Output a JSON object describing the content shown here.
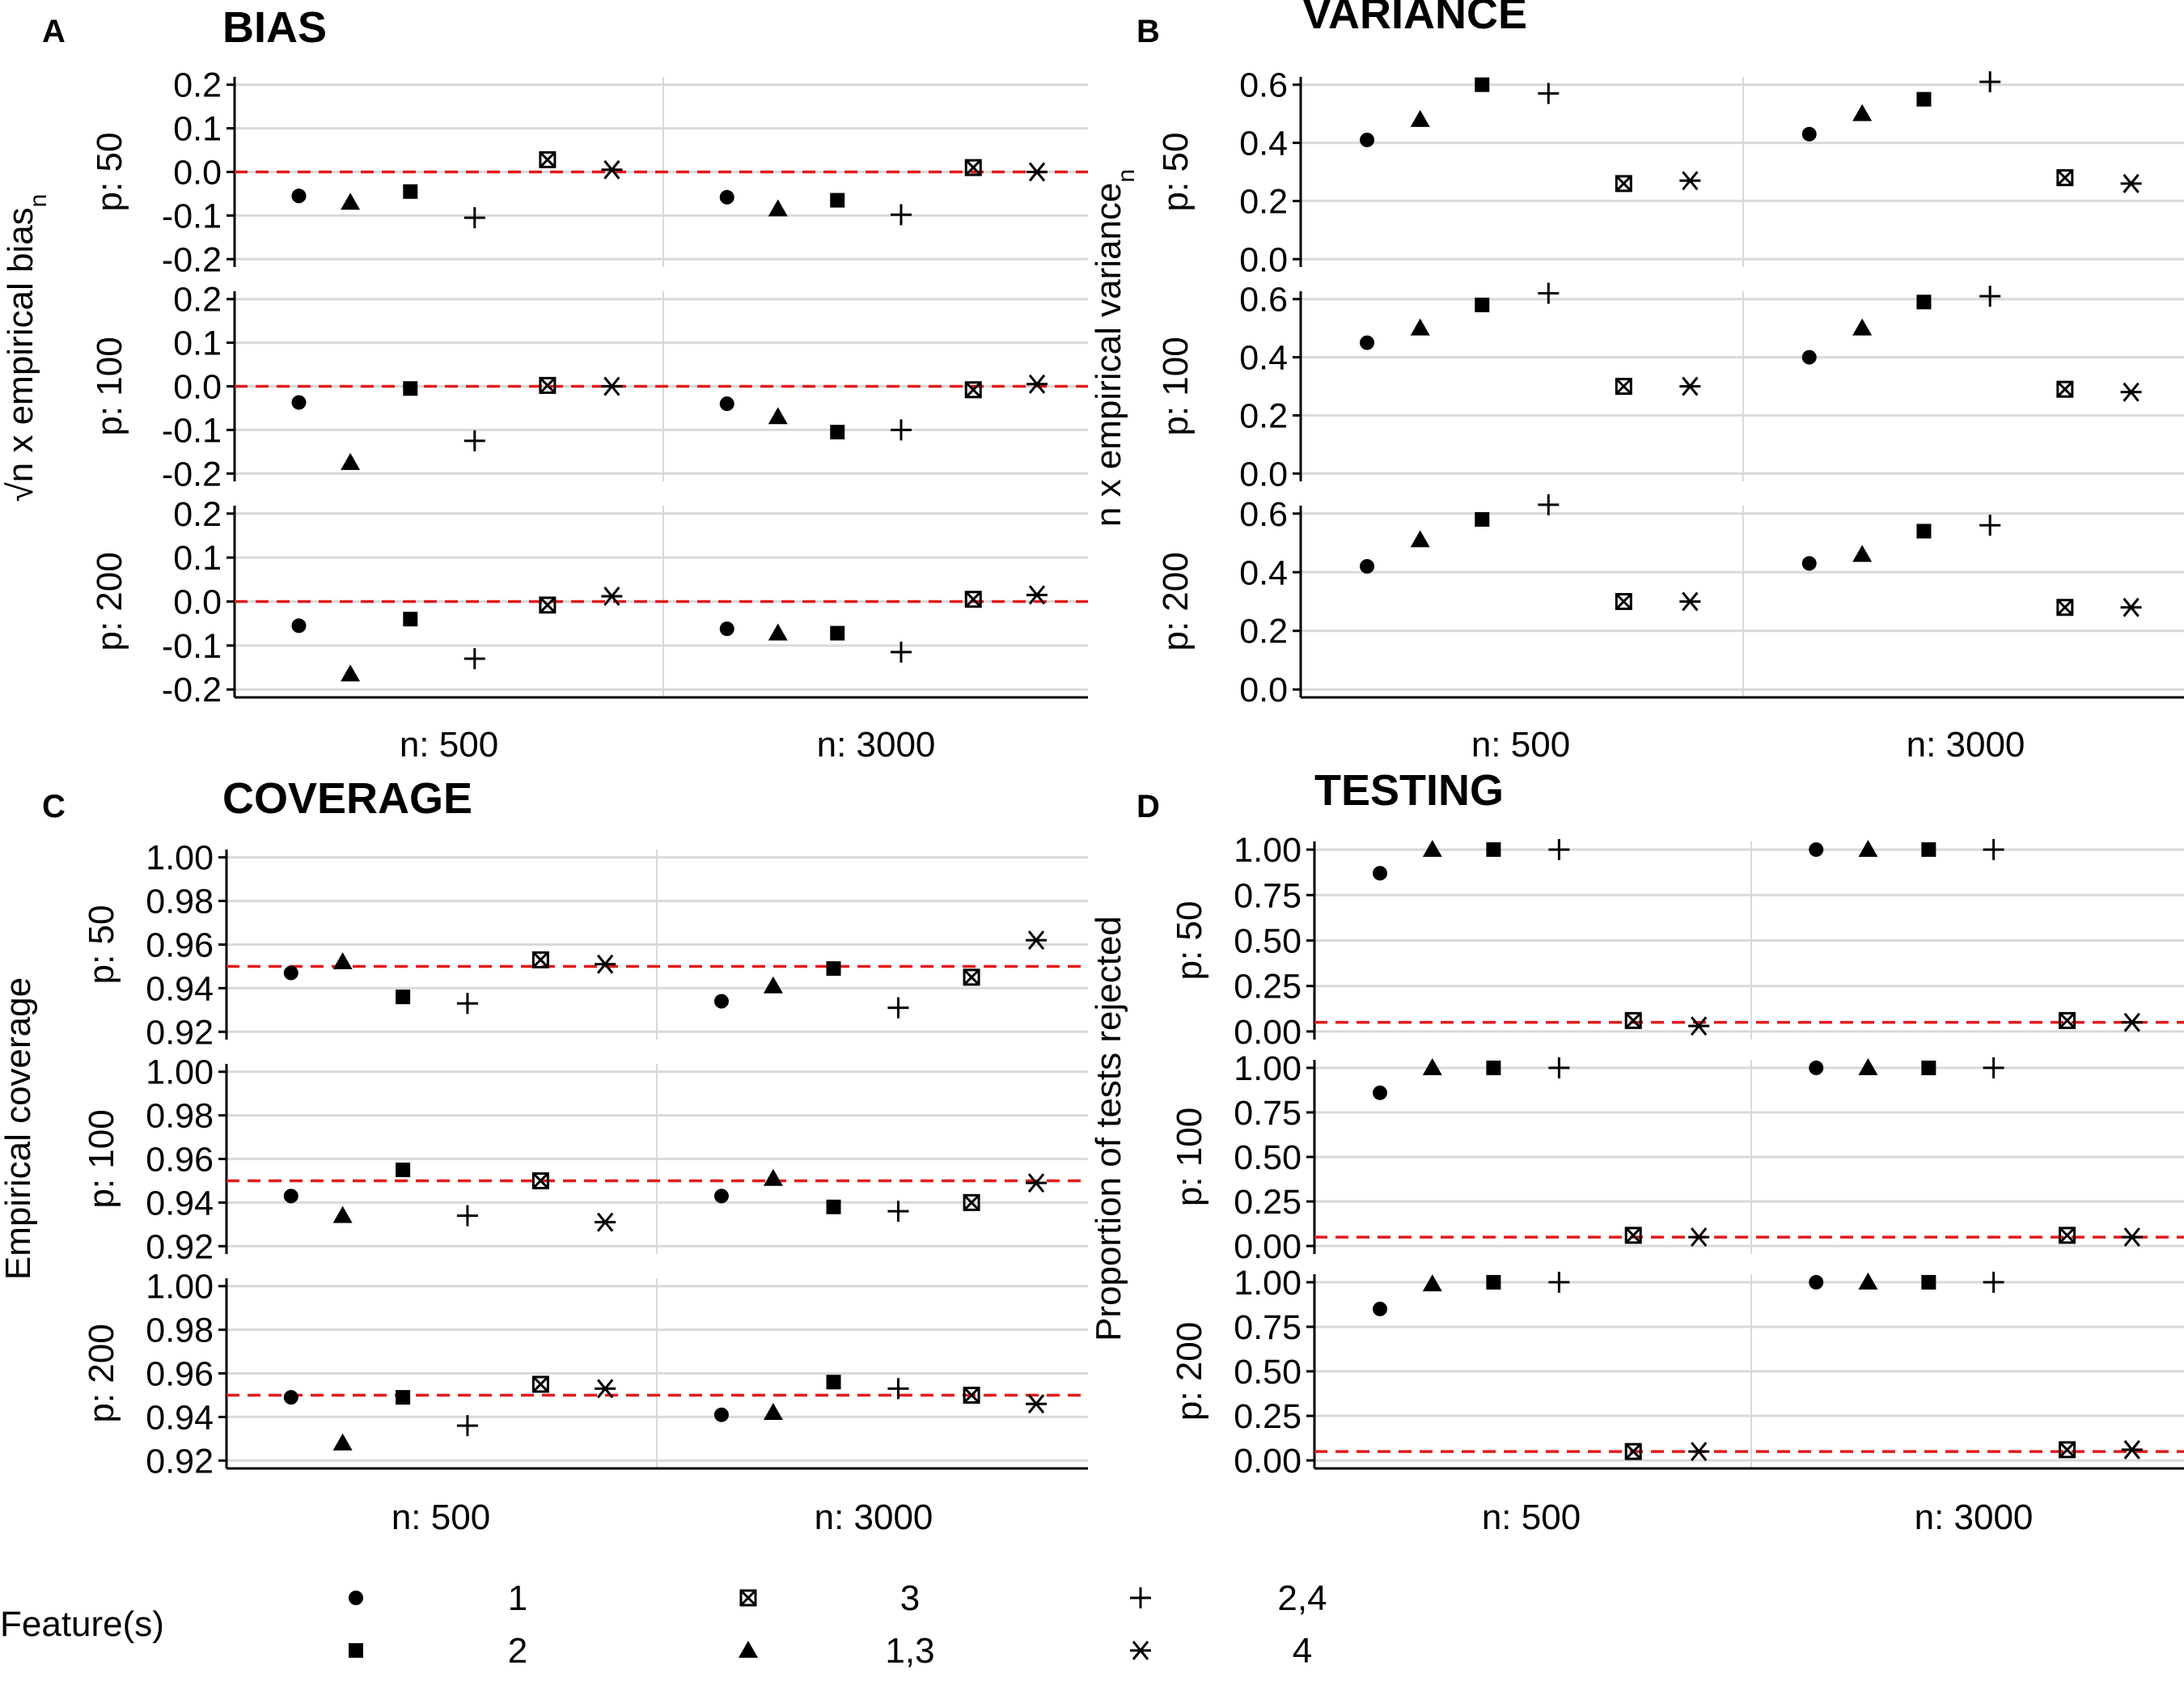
{
  "legend": {
    "title": "Feature(s)",
    "entries": [
      {
        "label": "1",
        "shape": "circle"
      },
      {
        "label": "1,3",
        "shape": "triangle"
      },
      {
        "label": "2",
        "shape": "square"
      },
      {
        "label": "2,4",
        "shape": "plus"
      },
      {
        "label": "3",
        "shape": "boxx"
      },
      {
        "label": "4",
        "shape": "asterisk"
      }
    ]
  },
  "colors": {
    "reference_line": "#e31a1c",
    "grid": "#d9d9d9",
    "points": "#000000"
  },
  "chart_data": [
    {
      "type": "scatter",
      "panel": "A",
      "title": "BIAS",
      "ylabel": "√n x empirical bias",
      "ylabel_subscript": "n",
      "ylim": [
        -0.2,
        0.2
      ],
      "yticks": [
        "-0.2",
        "-0.1",
        "0.0",
        "0.1",
        "0.2"
      ],
      "reference_line": 0.0,
      "row_facets": [
        "p: 50",
        "p: 100",
        "p: 200"
      ],
      "col_facets": [
        "n: 500",
        "n: 3000"
      ],
      "series": [
        {
          "name": "1",
          "shape": "circle",
          "values": [
            [
              -0.055,
              -0.058
            ],
            [
              -0.037,
              -0.04
            ],
            [
              -0.055,
              -0.062
            ]
          ]
        },
        {
          "name": "1,3",
          "shape": "triangle",
          "values": [
            [
              -0.07,
              -0.085
            ],
            [
              -0.175,
              -0.07
            ],
            [
              -0.165,
              -0.072
            ]
          ]
        },
        {
          "name": "2",
          "shape": "square",
          "values": [
            [
              -0.045,
              -0.065
            ],
            [
              -0.005,
              -0.105
            ],
            [
              -0.04,
              -0.072
            ]
          ]
        },
        {
          "name": "2,4",
          "shape": "plus",
          "values": [
            [
              -0.105,
              -0.098
            ],
            [
              -0.125,
              -0.1
            ],
            [
              -0.13,
              -0.115
            ]
          ]
        },
        {
          "name": "3",
          "shape": "boxx",
          "values": [
            [
              0.028,
              0.01
            ],
            [
              0.002,
              -0.008
            ],
            [
              -0.008,
              0.005
            ]
          ]
        },
        {
          "name": "4",
          "shape": "asterisk",
          "values": [
            [
              0.005,
              0.0
            ],
            [
              0.0,
              0.005
            ],
            [
              0.012,
              0.015
            ]
          ]
        }
      ]
    },
    {
      "type": "scatter",
      "panel": "B",
      "title": "VARIANCE",
      "ylabel": "n x empirical variance",
      "ylabel_subscript": "n",
      "ylim": [
        0.0,
        0.6
      ],
      "yticks": [
        "0.0",
        "0.2",
        "0.4",
        "0.6"
      ],
      "reference_line": null,
      "row_facets": [
        "p: 50",
        "p: 100",
        "p: 200"
      ],
      "col_facets": [
        "n: 500",
        "n: 3000"
      ],
      "series": [
        {
          "name": "1",
          "shape": "circle",
          "values": [
            [
              0.41,
              0.43
            ],
            [
              0.45,
              0.4
            ],
            [
              0.42,
              0.43
            ]
          ]
        },
        {
          "name": "1,3",
          "shape": "triangle",
          "values": [
            [
              0.48,
              0.5
            ],
            [
              0.5,
              0.5
            ],
            [
              0.51,
              0.46
            ]
          ]
        },
        {
          "name": "2",
          "shape": "square",
          "values": [
            [
              0.6,
              0.55
            ],
            [
              0.58,
              0.59
            ],
            [
              0.58,
              0.54
            ]
          ]
        },
        {
          "name": "2,4",
          "shape": "plus",
          "values": [
            [
              0.57,
              0.61
            ],
            [
              0.62,
              0.61
            ],
            [
              0.63,
              0.56
            ]
          ]
        },
        {
          "name": "3",
          "shape": "boxx",
          "values": [
            [
              0.26,
              0.28
            ],
            [
              0.3,
              0.29
            ],
            [
              0.3,
              0.28
            ]
          ]
        },
        {
          "name": "4",
          "shape": "asterisk",
          "values": [
            [
              0.27,
              0.26
            ],
            [
              0.3,
              0.28
            ],
            [
              0.3,
              0.28
            ]
          ]
        }
      ]
    },
    {
      "type": "scatter",
      "panel": "C",
      "title": "COVERAGE",
      "ylabel": "Empirical coverage",
      "ylim": [
        0.92,
        1.0
      ],
      "yticks": [
        "0.92",
        "0.94",
        "0.96",
        "0.98",
        "1.00"
      ],
      "reference_line": 0.95,
      "row_facets": [
        "p: 50",
        "p: 100",
        "p: 200"
      ],
      "col_facets": [
        "n: 500",
        "n: 3000"
      ],
      "series": [
        {
          "name": "1",
          "shape": "circle",
          "values": [
            [
              0.947,
              0.934
            ],
            [
              0.943,
              0.943
            ],
            [
              0.949,
              0.941
            ]
          ]
        },
        {
          "name": "1,3",
          "shape": "triangle",
          "values": [
            [
              0.952,
              0.941
            ],
            [
              0.934,
              0.951
            ],
            [
              0.928,
              0.942
            ]
          ]
        },
        {
          "name": "2",
          "shape": "square",
          "values": [
            [
              0.936,
              0.949
            ],
            [
              0.955,
              0.938
            ],
            [
              0.949,
              0.956
            ]
          ]
        },
        {
          "name": "2,4",
          "shape": "plus",
          "values": [
            [
              0.933,
              0.931
            ],
            [
              0.934,
              0.936
            ],
            [
              0.936,
              0.953
            ]
          ]
        },
        {
          "name": "3",
          "shape": "boxx",
          "values": [
            [
              0.953,
              0.945
            ],
            [
              0.95,
              0.94
            ],
            [
              0.955,
              0.95
            ]
          ]
        },
        {
          "name": "4",
          "shape": "asterisk",
          "values": [
            [
              0.951,
              0.962
            ],
            [
              0.931,
              0.949
            ],
            [
              0.953,
              0.946
            ]
          ]
        }
      ]
    },
    {
      "type": "scatter",
      "panel": "D",
      "title": "TESTING",
      "ylabel": "Proportion of tests rejected",
      "ylim": [
        0.0,
        1.0
      ],
      "yticks": [
        "0.00",
        "0.25",
        "0.50",
        "0.75",
        "1.00"
      ],
      "reference_line": 0.05,
      "row_facets": [
        "p: 50",
        "p: 100",
        "p: 200"
      ],
      "col_facets": [
        "n: 500",
        "n: 3000"
      ],
      "series": [
        {
          "name": "1",
          "shape": "circle",
          "values": [
            [
              0.87,
              1.0
            ],
            [
              0.86,
              1.0
            ],
            [
              0.85,
              1.0
            ]
          ]
        },
        {
          "name": "1,3",
          "shape": "triangle",
          "values": [
            [
              1.0,
              1.0
            ],
            [
              1.0,
              1.0
            ],
            [
              0.99,
              1.0
            ]
          ]
        },
        {
          "name": "2",
          "shape": "square",
          "values": [
            [
              1.0,
              1.0
            ],
            [
              1.0,
              1.0
            ],
            [
              1.0,
              1.0
            ]
          ]
        },
        {
          "name": "2,4",
          "shape": "plus",
          "values": [
            [
              1.0,
              1.0
            ],
            [
              1.0,
              1.0
            ],
            [
              1.0,
              1.0
            ]
          ]
        },
        {
          "name": "3",
          "shape": "boxx",
          "values": [
            [
              0.06,
              0.06
            ],
            [
              0.06,
              0.06
            ],
            [
              0.05,
              0.06
            ]
          ]
        },
        {
          "name": "4",
          "shape": "asterisk",
          "values": [
            [
              0.03,
              0.05
            ],
            [
              0.05,
              0.05
            ],
            [
              0.05,
              0.06
            ]
          ]
        }
      ]
    }
  ]
}
